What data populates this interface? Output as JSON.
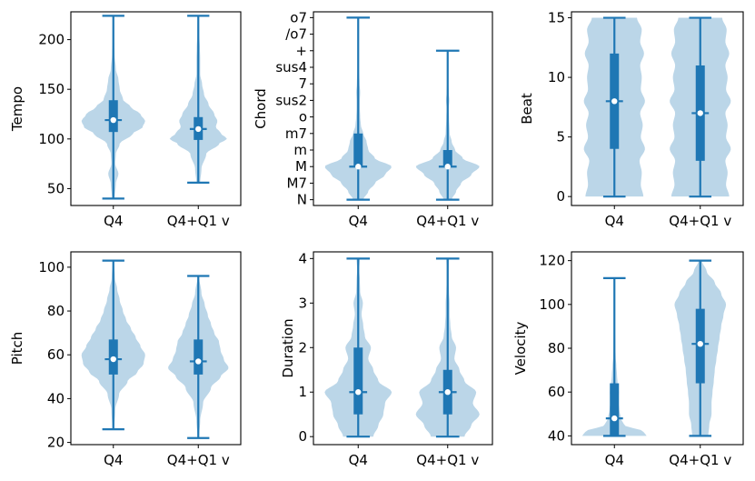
{
  "chart_data": [
    {
      "type": "violin",
      "ylabel": "Tempo",
      "categories": [
        "Q4",
        "Q4+Q1 v"
      ],
      "ylim": [
        33,
        228
      ],
      "yticks": [
        50,
        100,
        150,
        200
      ],
      "yticklabels": [
        "50",
        "100",
        "150",
        "200"
      ],
      "series": [
        {
          "name": "Q4",
          "min": 40,
          "q1": 107,
          "median": 119,
          "q3": 139,
          "max": 224,
          "density": [
            [
              40,
              0.04
            ],
            [
              55,
              0.08
            ],
            [
              65,
              0.16
            ],
            [
              75,
              0.06
            ],
            [
              85,
              0.08
            ],
            [
              95,
              0.2
            ],
            [
              105,
              0.6
            ],
            [
              112,
              0.92
            ],
            [
              118,
              1.0
            ],
            [
              125,
              0.85
            ],
            [
              132,
              0.55
            ],
            [
              140,
              0.3
            ],
            [
              150,
              0.2
            ],
            [
              160,
              0.16
            ],
            [
              170,
              0.08
            ],
            [
              185,
              0.04
            ],
            [
              200,
              0.03
            ],
            [
              224,
              0.02
            ]
          ]
        },
        {
          "name": "Q4+Q1 v",
          "min": 56,
          "q1": 99,
          "median": 110,
          "q3": 122,
          "max": 224,
          "density": [
            [
              56,
              0.06
            ],
            [
              70,
              0.1
            ],
            [
              85,
              0.25
            ],
            [
              95,
              0.65
            ],
            [
              100,
              0.9
            ],
            [
              106,
              0.7
            ],
            [
              112,
              0.55
            ],
            [
              118,
              0.6
            ],
            [
              125,
              0.5
            ],
            [
              135,
              0.32
            ],
            [
              145,
              0.18
            ],
            [
              155,
              0.12
            ],
            [
              165,
              0.06
            ],
            [
              180,
              0.06
            ],
            [
              192,
              0.05
            ],
            [
              205,
              0.03
            ],
            [
              224,
              0.02
            ]
          ]
        }
      ]
    },
    {
      "type": "violin",
      "ylabel": "Chord",
      "categories": [
        "Q4",
        "Q4+Q1 v"
      ],
      "ylim": [
        -0.35,
        11.35
      ],
      "yticks": [
        0,
        1,
        2,
        3,
        4,
        5,
        6,
        7,
        8,
        9,
        10,
        11
      ],
      "yticklabels": [
        "N",
        "M7",
        "M",
        "m",
        "m7",
        "o",
        "sus2",
        "7",
        "sus4",
        "+",
        "/o7",
        "o7"
      ],
      "series": [
        {
          "name": "Q4",
          "min": 0,
          "q1": 2,
          "median": 2,
          "q3": 4,
          "max": 11,
          "density": [
            [
              0,
              0.15
            ],
            [
              0.5,
              0.3
            ],
            [
              1,
              0.5
            ],
            [
              1.5,
              0.8
            ],
            [
              2,
              1.0
            ],
            [
              2.5,
              0.5
            ],
            [
              3,
              0.3
            ],
            [
              3.5,
              0.25
            ],
            [
              4,
              0.15
            ],
            [
              4.5,
              0.08
            ],
            [
              5,
              0.06
            ],
            [
              5.5,
              0.05
            ],
            [
              6,
              0.05
            ],
            [
              6.5,
              0.06
            ],
            [
              7,
              0.04
            ],
            [
              8,
              0.02
            ],
            [
              9,
              0.02
            ],
            [
              11,
              0.02
            ]
          ]
        },
        {
          "name": "Q4+Q1 v",
          "min": 0,
          "q1": 2,
          "median": 2,
          "q3": 3,
          "max": 9,
          "density": [
            [
              0,
              0.12
            ],
            [
              0.5,
              0.25
            ],
            [
              1,
              0.4
            ],
            [
              1.5,
              0.7
            ],
            [
              2,
              0.95
            ],
            [
              2.5,
              0.45
            ],
            [
              3,
              0.22
            ],
            [
              3.5,
              0.12
            ],
            [
              4,
              0.06
            ],
            [
              5,
              0.04
            ],
            [
              5.5,
              0.03
            ],
            [
              6,
              0.05
            ],
            [
              6.5,
              0.03
            ],
            [
              7,
              0.02
            ],
            [
              8,
              0.02
            ],
            [
              9,
              0.02
            ]
          ]
        }
      ]
    },
    {
      "type": "violin",
      "ylabel": "Beat",
      "categories": [
        "Q4",
        "Q4+Q1 v"
      ],
      "ylim": [
        -0.75,
        15.5
      ],
      "yticks": [
        0,
        5,
        10,
        15
      ],
      "yticklabels": [
        "0",
        "5",
        "10",
        "15"
      ],
      "series": [
        {
          "name": "Q4",
          "min": 0,
          "q1": 4,
          "median": 8,
          "q3": 12,
          "max": 15,
          "density": [
            [
              0,
              0.9
            ],
            [
              1,
              0.82
            ],
            [
              2,
              0.85
            ],
            [
              3,
              0.78
            ],
            [
              4,
              0.95
            ],
            [
              5,
              0.82
            ],
            [
              6,
              0.88
            ],
            [
              7,
              0.8
            ],
            [
              8,
              0.95
            ],
            [
              9,
              0.82
            ],
            [
              10,
              0.85
            ],
            [
              11,
              0.8
            ],
            [
              12,
              0.92
            ],
            [
              13,
              0.8
            ],
            [
              14,
              0.85
            ],
            [
              15,
              0.7
            ]
          ]
        },
        {
          "name": "Q4+Q1 v",
          "min": 0,
          "q1": 3,
          "median": 7,
          "q3": 11,
          "max": 15,
          "density": [
            [
              0,
              0.9
            ],
            [
              1,
              0.8
            ],
            [
              2,
              0.85
            ],
            [
              3,
              0.78
            ],
            [
              4,
              0.95
            ],
            [
              5,
              0.8
            ],
            [
              6,
              0.85
            ],
            [
              7,
              0.78
            ],
            [
              8,
              0.95
            ],
            [
              9,
              0.8
            ],
            [
              10,
              0.85
            ],
            [
              11,
              0.78
            ],
            [
              12,
              0.9
            ],
            [
              13,
              0.78
            ],
            [
              14,
              0.82
            ],
            [
              15,
              0.68
            ]
          ]
        }
      ]
    },
    {
      "type": "violin",
      "ylabel": "Pitch",
      "categories": [
        "Q4",
        "Q4+Q1 v"
      ],
      "ylim": [
        19,
        107
      ],
      "yticks": [
        20,
        40,
        60,
        80,
        100
      ],
      "yticklabels": [
        "20",
        "40",
        "60",
        "80",
        "100"
      ],
      "series": [
        {
          "name": "Q4",
          "min": 26,
          "q1": 51,
          "median": 58,
          "q3": 67,
          "max": 103,
          "density": [
            [
              26,
              0.03
            ],
            [
              35,
              0.06
            ],
            [
              42,
              0.18
            ],
            [
              48,
              0.45
            ],
            [
              52,
              0.75
            ],
            [
              56,
              0.95
            ],
            [
              60,
              1.0
            ],
            [
              64,
              0.85
            ],
            [
              68,
              0.7
            ],
            [
              72,
              0.55
            ],
            [
              76,
              0.4
            ],
            [
              80,
              0.3
            ],
            [
              85,
              0.2
            ],
            [
              90,
              0.12
            ],
            [
              95,
              0.05
            ],
            [
              103,
              0.02
            ]
          ]
        },
        {
          "name": "Q4+Q1 v",
          "min": 22,
          "q1": 51,
          "median": 57,
          "q3": 67,
          "max": 96,
          "density": [
            [
              22,
              0.02
            ],
            [
              30,
              0.06
            ],
            [
              38,
              0.15
            ],
            [
              45,
              0.4
            ],
            [
              50,
              0.7
            ],
            [
              54,
              0.95
            ],
            [
              58,
              0.8
            ],
            [
              62,
              0.7
            ],
            [
              66,
              0.65
            ],
            [
              70,
              0.5
            ],
            [
              74,
              0.4
            ],
            [
              78,
              0.3
            ],
            [
              83,
              0.2
            ],
            [
              88,
              0.1
            ],
            [
              96,
              0.02
            ]
          ]
        }
      ]
    },
    {
      "type": "violin",
      "ylabel": "Duration",
      "categories": [
        "Q4",
        "Q4+Q1 v"
      ],
      "ylim": [
        -0.18,
        4.15
      ],
      "yticks": [
        0,
        1,
        2,
        3,
        4
      ],
      "yticklabels": [
        "0",
        "1",
        "2",
        "3",
        "4"
      ],
      "series": [
        {
          "name": "Q4",
          "min": 0,
          "q1": 0.5,
          "median": 1,
          "q3": 2,
          "max": 4,
          "density": [
            [
              0,
              0.45
            ],
            [
              0.25,
              0.6
            ],
            [
              0.5,
              0.75
            ],
            [
              0.75,
              0.8
            ],
            [
              1,
              1.0
            ],
            [
              1.25,
              0.6
            ],
            [
              1.5,
              0.45
            ],
            [
              1.75,
              0.3
            ],
            [
              2,
              0.38
            ],
            [
              2.25,
              0.2
            ],
            [
              2.5,
              0.15
            ],
            [
              2.75,
              0.1
            ],
            [
              3,
              0.14
            ],
            [
              3.25,
              0.06
            ],
            [
              3.5,
              0.05
            ],
            [
              3.75,
              0.03
            ],
            [
              4,
              0.05
            ]
          ]
        },
        {
          "name": "Q4+Q1 v",
          "min": 0,
          "q1": 0.5,
          "median": 1,
          "q3": 1.5,
          "max": 4,
          "density": [
            [
              0,
              0.5
            ],
            [
              0.25,
              0.7
            ],
            [
              0.5,
              0.95
            ],
            [
              0.75,
              0.75
            ],
            [
              1,
              0.85
            ],
            [
              1.25,
              0.5
            ],
            [
              1.5,
              0.35
            ],
            [
              1.75,
              0.2
            ],
            [
              2,
              0.25
            ],
            [
              2.25,
              0.12
            ],
            [
              2.5,
              0.08
            ],
            [
              2.75,
              0.06
            ],
            [
              3,
              0.06
            ],
            [
              3.25,
              0.04
            ],
            [
              3.5,
              0.03
            ],
            [
              3.75,
              0.03
            ],
            [
              4,
              0.04
            ]
          ]
        }
      ]
    },
    {
      "type": "violin",
      "ylabel": "Velocity",
      "categories": [
        "Q4",
        "Q4+Q1 v"
      ],
      "ylim": [
        36,
        124
      ],
      "yticks": [
        40,
        60,
        80,
        100,
        120
      ],
      "yticklabels": [
        "40",
        "60",
        "80",
        "100",
        "120"
      ],
      "series": [
        {
          "name": "Q4",
          "min": 40,
          "q1": 40,
          "median": 48,
          "q3": 64,
          "max": 112,
          "density": [
            [
              40,
              1.0
            ],
            [
              42,
              0.9
            ],
            [
              45,
              0.3
            ],
            [
              48,
              0.2
            ],
            [
              52,
              0.15
            ],
            [
              56,
              0.12
            ],
            [
              60,
              0.14
            ],
            [
              64,
              0.1
            ],
            [
              68,
              0.08
            ],
            [
              72,
              0.06
            ],
            [
              76,
              0.04
            ],
            [
              80,
              0.03
            ],
            [
              90,
              0.02
            ],
            [
              100,
              0.015
            ],
            [
              112,
              0.01
            ]
          ]
        },
        {
          "name": "Q4+Q1 v",
          "min": 40,
          "q1": 64,
          "median": 82,
          "q3": 98,
          "max": 120,
          "density": [
            [
              40,
              0.25
            ],
            [
              45,
              0.28
            ],
            [
              50,
              0.35
            ],
            [
              55,
              0.35
            ],
            [
              60,
              0.38
            ],
            [
              65,
              0.42
            ],
            [
              70,
              0.45
            ],
            [
              75,
              0.5
            ],
            [
              80,
              0.55
            ],
            [
              85,
              0.6
            ],
            [
              90,
              0.65
            ],
            [
              95,
              0.72
            ],
            [
              100,
              0.8
            ],
            [
              105,
              0.65
            ],
            [
              110,
              0.45
            ],
            [
              115,
              0.2
            ],
            [
              120,
              0.05
            ]
          ]
        }
      ]
    }
  ]
}
